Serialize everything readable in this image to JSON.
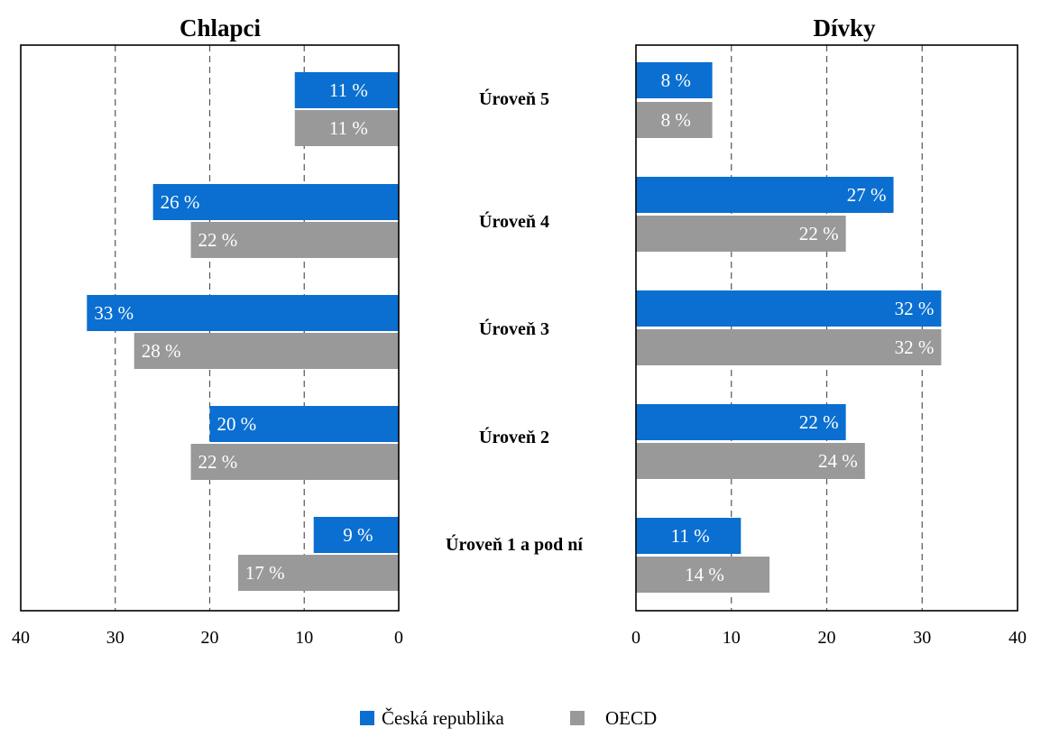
{
  "chart_data": [
    {
      "type": "bar",
      "orientation": "horizontal",
      "direction": "right-to-left",
      "title": "Chlapci",
      "categories": [
        "Úroveň 5",
        "Úroveň 4",
        "Úroveň 3",
        "Úroveň 2",
        "Úroveň 1 a pod ní"
      ],
      "series": [
        {
          "name": "Česká republika",
          "values": [
            11,
            26,
            33,
            20,
            9
          ],
          "labels": [
            "11 %",
            "26 %",
            "33 %",
            "20 %",
            "9 %"
          ],
          "color": "#0a6fd1"
        },
        {
          "name": "OECD",
          "values": [
            11,
            22,
            28,
            22,
            17
          ],
          "labels": [
            "11 %",
            "22 %",
            "28 %",
            "22 %",
            "17 %"
          ],
          "color": "#999999"
        }
      ],
      "xlim": [
        0,
        40
      ],
      "ticks": [
        "40",
        "30",
        "20",
        "10",
        "0"
      ],
      "grid": "dashed vertical"
    },
    {
      "type": "bar",
      "orientation": "horizontal",
      "direction": "left-to-right",
      "title": "Dívky",
      "categories": [
        "Úroveň 5",
        "Úroveň 4",
        "Úroveň 3",
        "Úroveň 2",
        "Úroveň 1 a pod ní"
      ],
      "series": [
        {
          "name": "Česká republika",
          "values": [
            8,
            27,
            32,
            22,
            11
          ],
          "labels": [
            "8 %",
            "27 %",
            "32 %",
            "22 %",
            "11 %"
          ],
          "color": "#0a6fd1"
        },
        {
          "name": "OECD",
          "values": [
            8,
            22,
            32,
            24,
            14
          ],
          "labels": [
            "8 %",
            "22 %",
            "32 %",
            "24 %",
            "14 %"
          ],
          "color": "#999999"
        }
      ],
      "xlim": [
        0,
        40
      ],
      "ticks": [
        "0",
        "10",
        "20",
        "30",
        "40"
      ],
      "grid": "dashed vertical"
    }
  ],
  "legend": {
    "position": "bottom-center",
    "items": [
      {
        "label": "Česká republika",
        "color": "#0a6fd1"
      },
      {
        "label": "OECD",
        "color": "#999999"
      }
    ]
  }
}
